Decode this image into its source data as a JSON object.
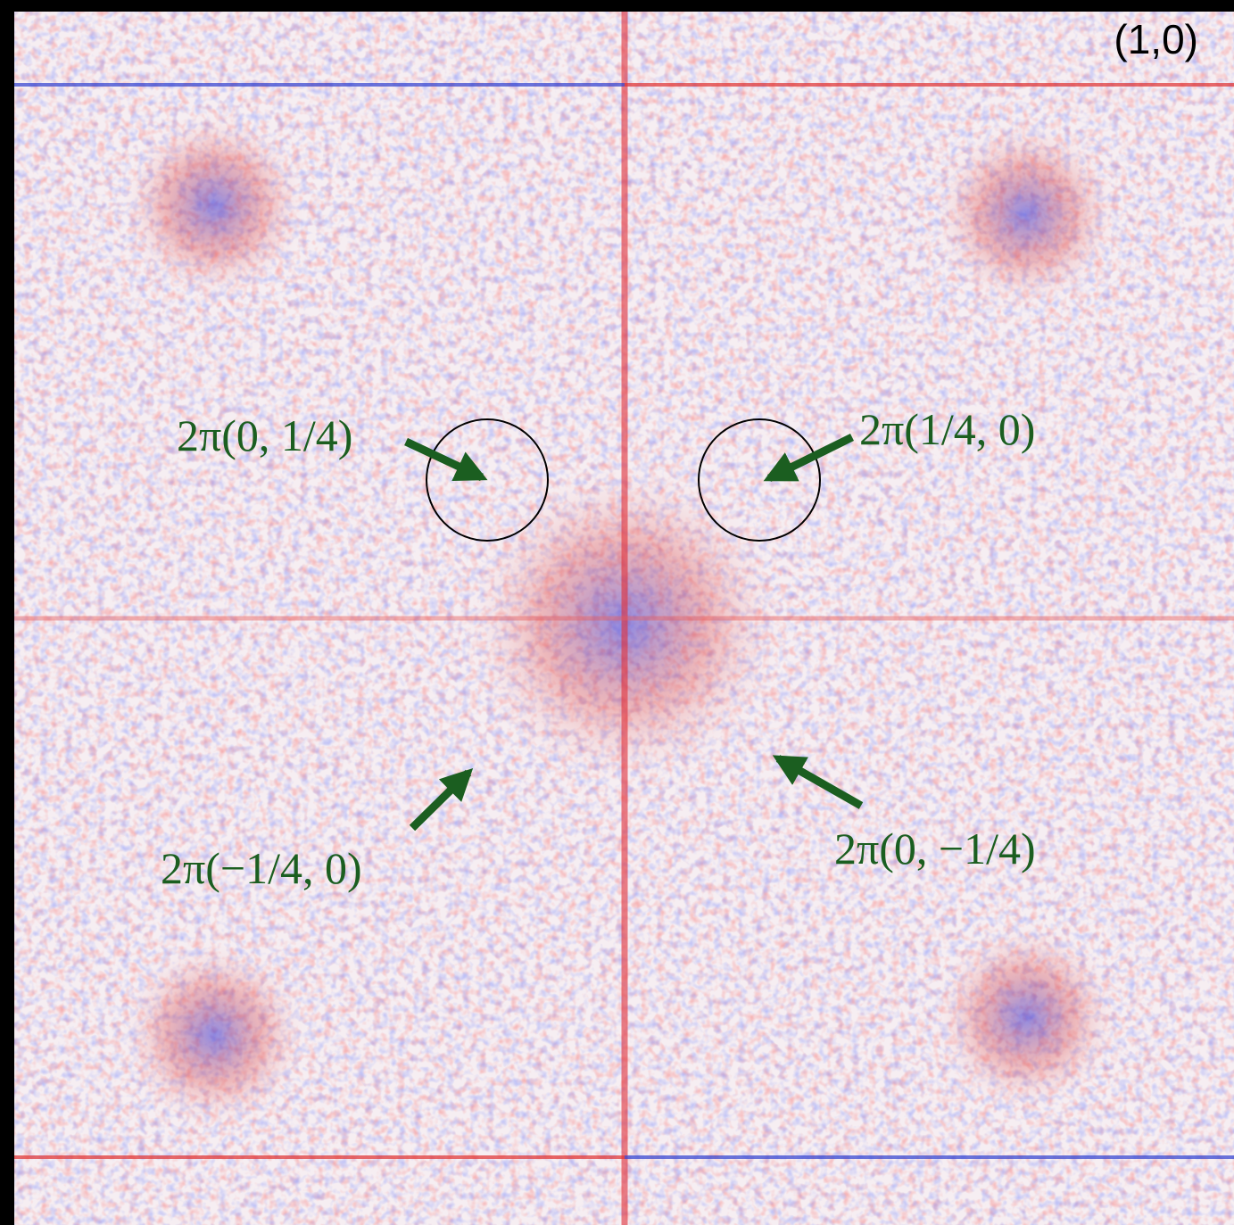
{
  "corner_label": "(1,0)",
  "annotations": [
    {
      "label": "2π(0, 1/4)"
    },
    {
      "label": "2π(1/4, 0)"
    },
    {
      "label": "2π(−1/4, 0)"
    },
    {
      "label": "2π(0, −1/4)"
    }
  ]
}
